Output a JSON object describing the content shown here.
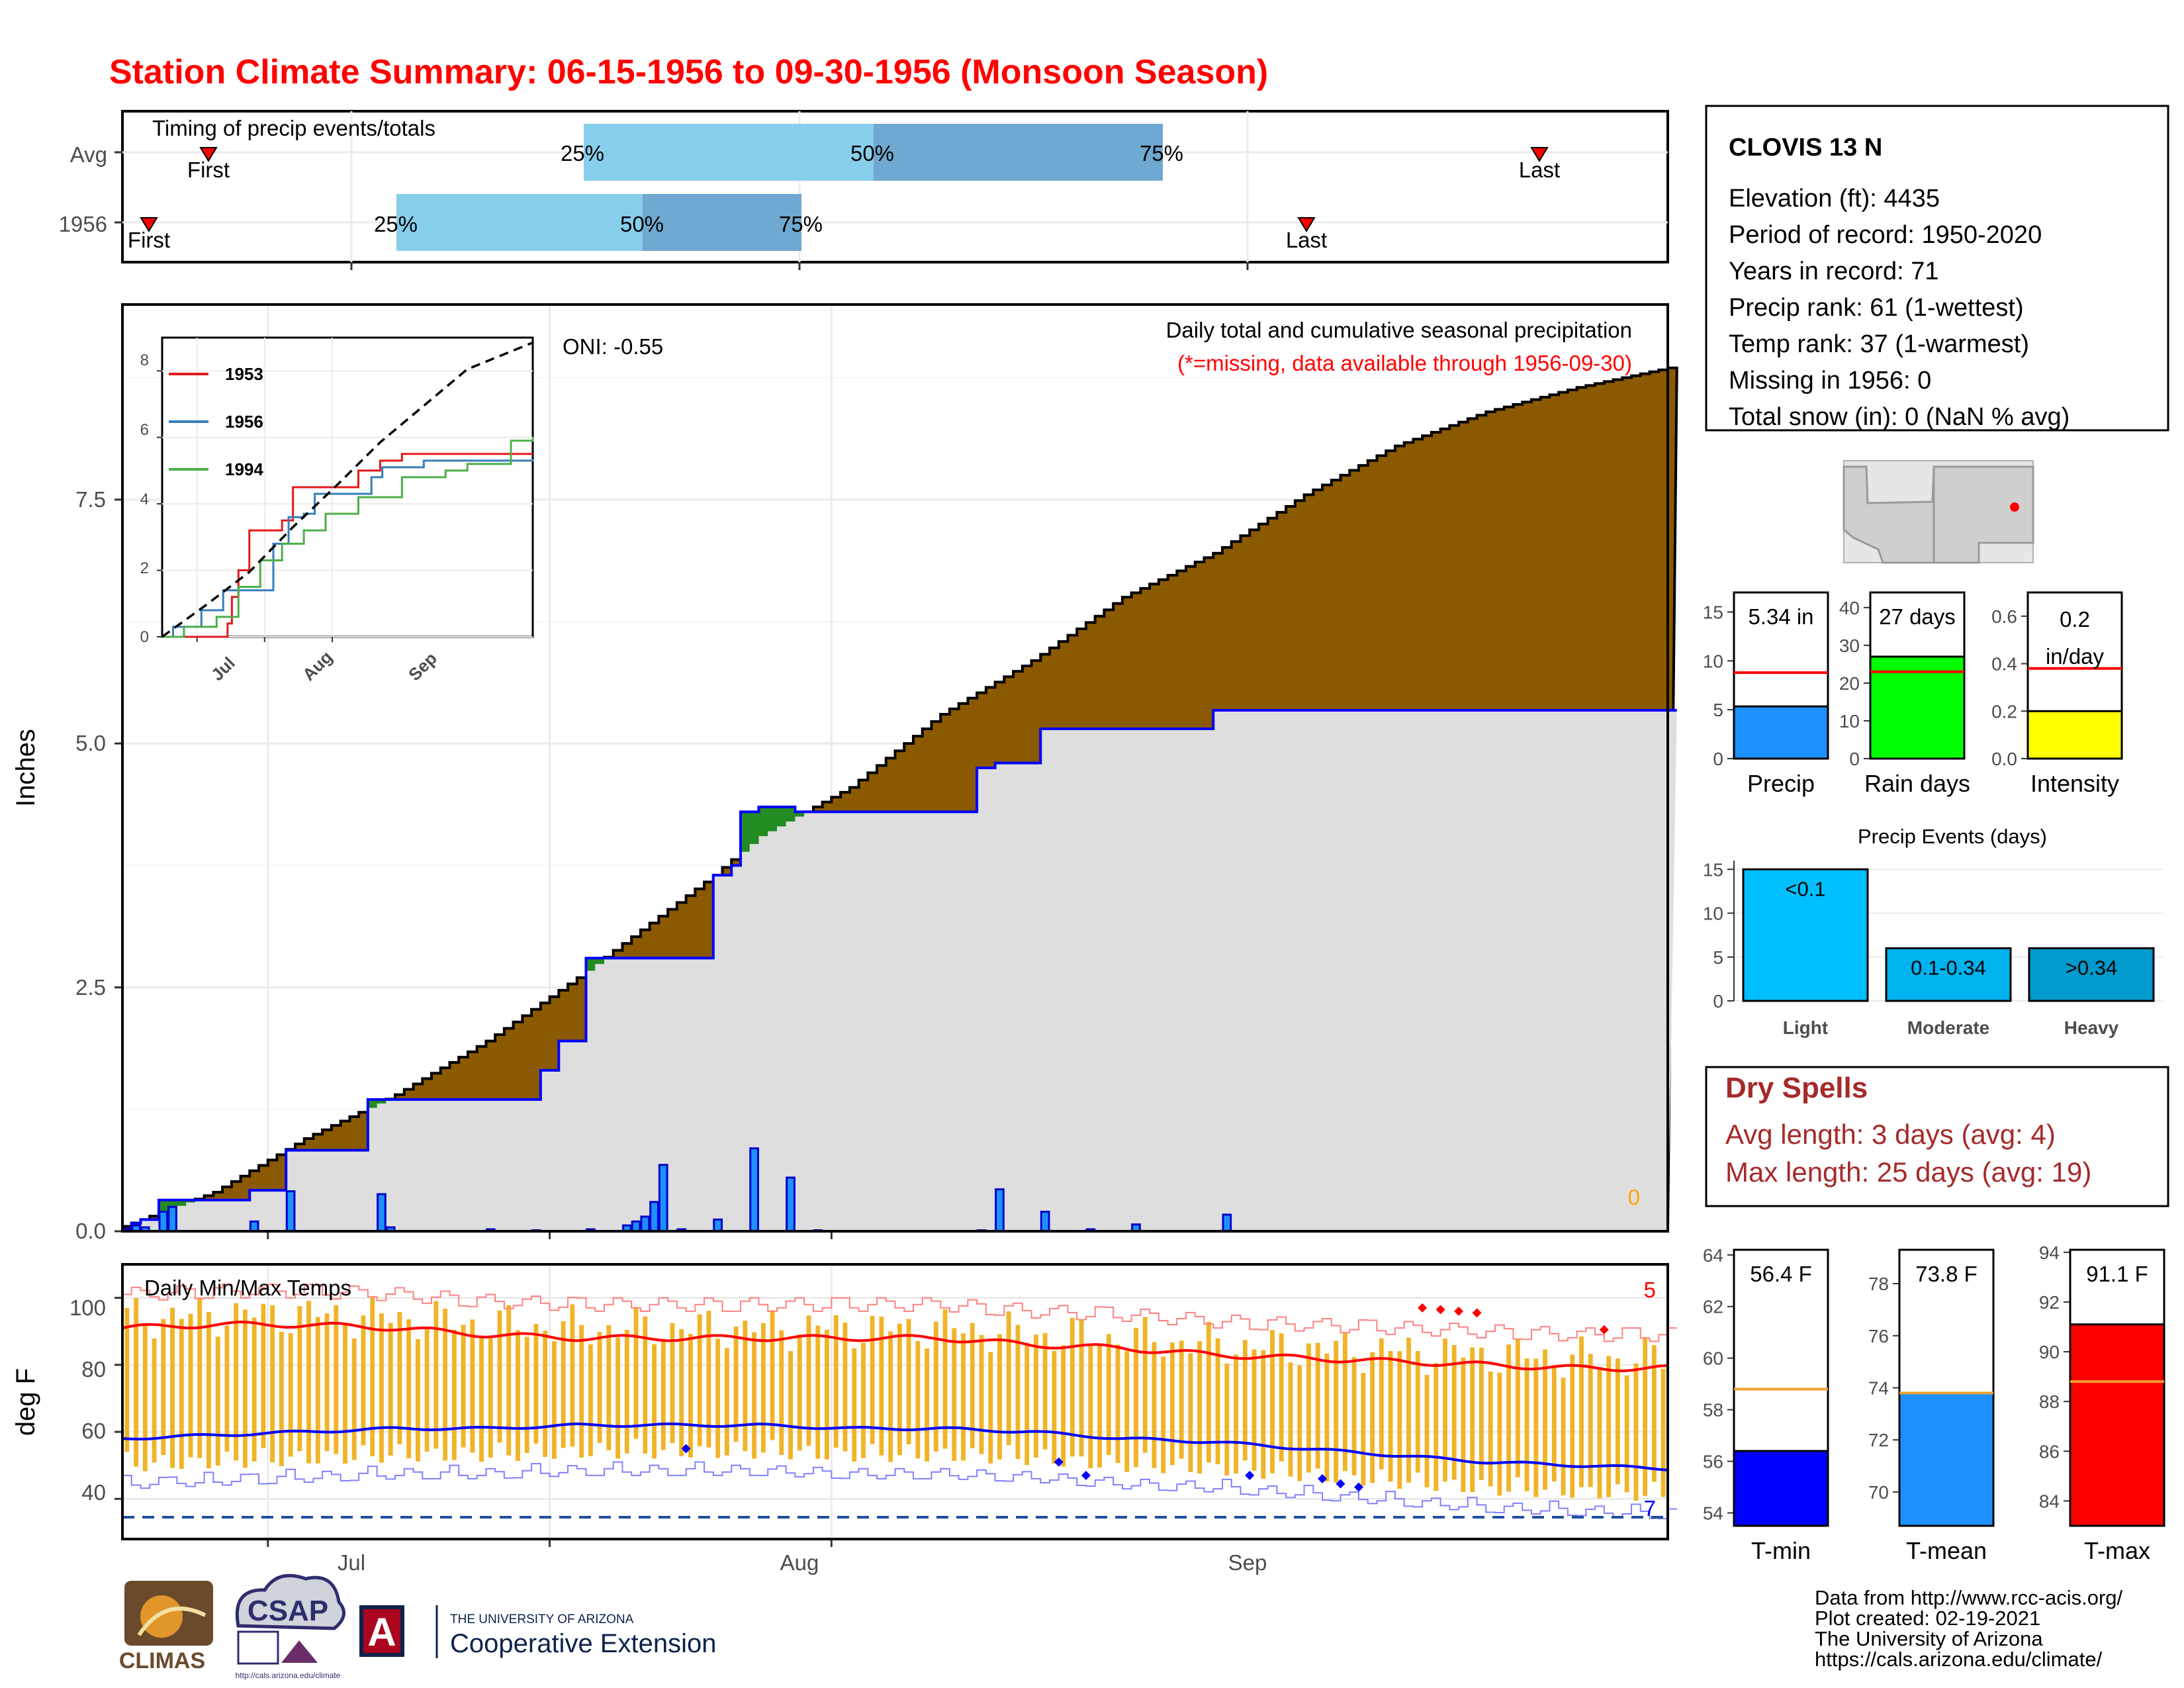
{
  "title": "Station Climate Summary: 06-15-1956 to 09-30-1956 (Monsoon Season)",
  "timing": {
    "label": "Timing of precip events/totals",
    "rows": [
      "Avg",
      "1956"
    ],
    "avg": {
      "first": "First",
      "last": "Last",
      "p25": "25%",
      "p50": "50%",
      "p75": "75%"
    },
    "year": {
      "first": "First",
      "last": "Last",
      "p25": "25%",
      "p50": "50%",
      "p75": "75%"
    }
  },
  "station": {
    "name": "CLOVIS 13 N",
    "lines": [
      "Elevation (ft): 4435",
      "Period of record: 1950-2020",
      "Years in record: 71",
      "Precip rank: 61 (1-wettest)",
      "Temp rank: 37 (1-warmest)",
      "Missing in 1956: 0",
      "Total snow (in): 0 (NaN % avg)"
    ]
  },
  "main_panel": {
    "ylabel": "Inches",
    "y_ticks": [
      "0.0",
      "2.5",
      "5.0",
      "7.5"
    ],
    "x_ticks": [
      "Jul",
      "Aug",
      "Sep"
    ],
    "oni": "ONI: -0.55",
    "subtitle": "Daily total and cumulative seasonal precipitation",
    "subtitle_note": "(*=missing, data available through 1956-09-30)",
    "missing_count": "0"
  },
  "inset": {
    "y_ticks": [
      "0",
      "2",
      "4",
      "6",
      "8"
    ],
    "x_ticks": [
      "Jul",
      "Aug",
      "Sep"
    ],
    "legend": [
      {
        "name": "1953",
        "color": "#e41a1c"
      },
      {
        "name": "1956",
        "color": "#377eb8"
      },
      {
        "name": "1994",
        "color": "#4daf4a"
      }
    ]
  },
  "temp_panel": {
    "ylabel": "deg F",
    "label": "Daily Min/Max Temps",
    "y_ticks": [
      "40",
      "60",
      "80",
      "100"
    ],
    "max_count": "5",
    "min_count": "7"
  },
  "summary_bars": [
    {
      "name": "Precip",
      "label": "5.34 in",
      "color": "#1e90ff"
    },
    {
      "name": "Rain days",
      "label": "27 days",
      "color": "#00ff00"
    },
    {
      "name": "Intensity",
      "label": "0.2 in/day",
      "color": "#ffff00"
    }
  ],
  "precip_events": {
    "title": "Precip Events (days)",
    "categories": [
      "Light",
      "Moderate",
      "Heavy"
    ],
    "labels": [
      "<0.1",
      "0.1-0.34",
      ">0.34"
    ]
  },
  "dry_spells": {
    "title": "Dry Spells",
    "avg": "Avg length: 3 days (avg: 4)",
    "max": "Max length: 25 days (avg: 19)"
  },
  "temp_bars": [
    {
      "name": "T-min",
      "label": "56.4 F",
      "color": "#0000ff"
    },
    {
      "name": "T-mean",
      "label": "73.8 F",
      "color": "#1e90ff"
    },
    {
      "name": "T-max",
      "label": "91.1 F",
      "color": "#ff0000"
    }
  ],
  "footer": {
    "lines": [
      "Data from http://www.rcc-acis.org/",
      "Plot created: 02-19-2021",
      "The University of Arizona",
      "https://cals.arizona.edu/climate/"
    ],
    "logos": {
      "climas": "CLIMAS",
      "csap": "CSAP",
      "csap_url": "http://cals.arizona.edu/climate",
      "ua_line1": "THE UNIVERSITY OF ARIZONA",
      "ua_line2": "Cooperative Extension",
      "ua_letter": "A"
    }
  },
  "chart_data": [
    {
      "type": "line",
      "title": "Daily total and cumulative seasonal precipitation",
      "ylabel": "Inches",
      "ylim": [
        0,
        9.5
      ],
      "x_range": [
        "06-15",
        "09-30"
      ],
      "series": [
        {
          "name": "cumulative",
          "color": "#0000ff",
          "points": [
            [
              0,
              0.02
            ],
            [
              1,
              0.08
            ],
            [
              2,
              0.12
            ],
            [
              4,
              0.32
            ],
            [
              14,
              0.42
            ],
            [
              18,
              0.83
            ],
            [
              27,
              1.35
            ],
            [
              46,
              1.65
            ],
            [
              48,
              1.95
            ],
            [
              51,
              2.8
            ],
            [
              65,
              3.65
            ],
            [
              67,
              3.75
            ],
            [
              68,
              4.3
            ],
            [
              70,
              4.35
            ],
            [
              74,
              4.3
            ],
            [
              75,
              4.3
            ],
            [
              94,
              4.75
            ],
            [
              96,
              4.8
            ],
            [
              101,
              5.15
            ],
            [
              120,
              5.34
            ],
            [
              140,
              5.34
            ]
          ]
        },
        {
          "name": "average",
          "color": "#000000",
          "points": [
            [
              0,
              0.05
            ],
            [
              10,
              0.4
            ],
            [
              20,
              0.95
            ],
            [
              30,
              1.4
            ],
            [
              40,
              1.95
            ],
            [
              50,
              2.6
            ],
            [
              60,
              3.3
            ],
            [
              65,
              3.65
            ],
            [
              70,
              4.05
            ],
            [
              75,
              4.3
            ],
            [
              80,
              4.55
            ],
            [
              90,
              5.3
            ],
            [
              100,
              5.85
            ],
            [
              110,
              6.5
            ],
            [
              120,
              6.95
            ],
            [
              130,
              7.55
            ],
            [
              140,
              8.05
            ],
            [
              150,
              8.4
            ],
            [
              160,
              8.65
            ],
            [
              170,
              8.85
            ]
          ]
        }
      ],
      "daily_precip": [
        [
          0,
          0.02
        ],
        [
          1,
          0.06
        ],
        [
          2,
          0.04
        ],
        [
          4,
          0.2
        ],
        [
          5,
          0.25
        ],
        [
          14,
          0.1
        ],
        [
          18,
          0.41
        ],
        [
          28,
          0.38
        ],
        [
          29,
          0.04
        ],
        [
          40,
          0.02
        ],
        [
          45,
          0.01
        ],
        [
          51,
          0.02
        ],
        [
          55,
          0.06
        ],
        [
          56,
          0.1
        ],
        [
          57,
          0.15
        ],
        [
          58,
          0.3
        ],
        [
          59,
          0.68
        ],
        [
          61,
          0.02
        ],
        [
          65,
          0.12
        ],
        [
          69,
          0.85
        ],
        [
          73,
          0.55
        ],
        [
          76,
          0.01
        ],
        [
          94,
          0.01
        ],
        [
          96,
          0.43
        ],
        [
          101,
          0.2
        ],
        [
          106,
          0.02
        ],
        [
          111,
          0.07
        ],
        [
          121,
          0.17
        ],
        [
          141,
          0.0
        ]
      ]
    },
    {
      "type": "line",
      "title": "",
      "xlabel": "",
      "ylabel": "",
      "ylim": [
        0,
        9
      ],
      "series": [
        {
          "name": "1953",
          "color": "#e41a1c",
          "points": [
            [
              0,
              0
            ],
            [
              30,
              0.4
            ],
            [
              32,
              1.2
            ],
            [
              35,
              2.0
            ],
            [
              40,
              3.2
            ],
            [
              55,
              3.5
            ],
            [
              60,
              4.5
            ],
            [
              75,
              4.5
            ],
            [
              85,
              4.5
            ],
            [
              90,
              5.0
            ],
            [
              100,
              5.3
            ],
            [
              110,
              5.5
            ],
            [
              140,
              5.5
            ],
            [
              170,
              5.5
            ]
          ]
        },
        {
          "name": "1956",
          "color": "#377eb8",
          "points": [
            [
              0,
              0
            ],
            [
              5,
              0.3
            ],
            [
              18,
              0.8
            ],
            [
              28,
              1.4
            ],
            [
              51,
              2.8
            ],
            [
              58,
              3.6
            ],
            [
              65,
              3.7
            ],
            [
              70,
              4.3
            ],
            [
              75,
              4.3
            ],
            [
              96,
              4.8
            ],
            [
              101,
              5.1
            ],
            [
              120,
              5.3
            ],
            [
              170,
              5.34
            ]
          ]
        },
        {
          "name": "1994",
          "color": "#4daf4a",
          "points": [
            [
              0,
              0
            ],
            [
              10,
              0.3
            ],
            [
              25,
              0.6
            ],
            [
              35,
              1.5
            ],
            [
              45,
              2.3
            ],
            [
              55,
              2.8
            ],
            [
              65,
              3.2
            ],
            [
              75,
              3.7
            ],
            [
              90,
              4.2
            ],
            [
              110,
              4.8
            ],
            [
              130,
              5.0
            ],
            [
              140,
              5.2
            ],
            [
              160,
              5.9
            ],
            [
              170,
              6.0
            ]
          ]
        },
        {
          "name": "average",
          "color": "#000000",
          "points": [
            [
              0,
              0
            ],
            [
              20,
              0.95
            ],
            [
              40,
              1.95
            ],
            [
              60,
              3.3
            ],
            [
              80,
              4.55
            ],
            [
              100,
              5.85
            ],
            [
              120,
              6.95
            ],
            [
              140,
              8.05
            ],
            [
              170,
              8.85
            ]
          ]
        }
      ]
    },
    {
      "type": "bar",
      "title": "Daily Min/Max Temps",
      "ylabel": "deg F",
      "ylim": [
        28,
        110
      ],
      "series": [
        {
          "name": "average max",
          "color": "#ff0000",
          "points": [
            [
              0,
              91
            ],
            [
              10,
              92
            ],
            [
              20,
              92
            ],
            [
              30,
              91
            ],
            [
              40,
              89
            ],
            [
              50,
              88
            ],
            [
              60,
              88
            ],
            [
              70,
              88
            ],
            [
              80,
              88
            ],
            [
              90,
              88
            ],
            [
              100,
              86
            ],
            [
              110,
              85
            ],
            [
              120,
              83
            ],
            [
              130,
              82
            ],
            [
              140,
              81
            ],
            [
              150,
              80
            ],
            [
              160,
              79
            ],
            [
              170,
              79
            ]
          ]
        },
        {
          "name": "average min",
          "color": "#0000ff",
          "points": [
            [
              0,
              58
            ],
            [
              10,
              59
            ],
            [
              20,
              60
            ],
            [
              30,
              61
            ],
            [
              40,
              61
            ],
            [
              50,
              62
            ],
            [
              60,
              62
            ],
            [
              70,
              62
            ],
            [
              80,
              61
            ],
            [
              90,
              61
            ],
            [
              100,
              60
            ],
            [
              110,
              58
            ],
            [
              120,
              57
            ],
            [
              130,
              55
            ],
            [
              140,
              53
            ],
            [
              150,
              51
            ],
            [
              160,
              50
            ],
            [
              170,
              49
            ]
          ]
        }
      ],
      "threshold": 33
    },
    {
      "type": "bar",
      "categories": [
        "Precip",
        "Rain days",
        "Intensity"
      ],
      "values": [
        5.34,
        27,
        0.2
      ],
      "averages": [
        8.8,
        23,
        0.38
      ],
      "ylims": [
        [
          0,
          17
        ],
        [
          0,
          44
        ],
        [
          0,
          0.7
        ]
      ]
    },
    {
      "type": "bar",
      "title": "Precip Events (days)",
      "categories": [
        "Light",
        "Moderate",
        "Heavy"
      ],
      "values": [
        15,
        6,
        6
      ],
      "ylim": [
        0,
        16
      ]
    },
    {
      "type": "bar",
      "categories": [
        "T-min",
        "T-mean",
        "T-max"
      ],
      "values": [
        56.4,
        73.8,
        91.1
      ],
      "averages": [
        58.8,
        73.8,
        88.8
      ],
      "ylims": [
        [
          53.5,
          64.2
        ],
        [
          68.7,
          79.3
        ],
        [
          83,
          94.1
        ]
      ]
    }
  ]
}
